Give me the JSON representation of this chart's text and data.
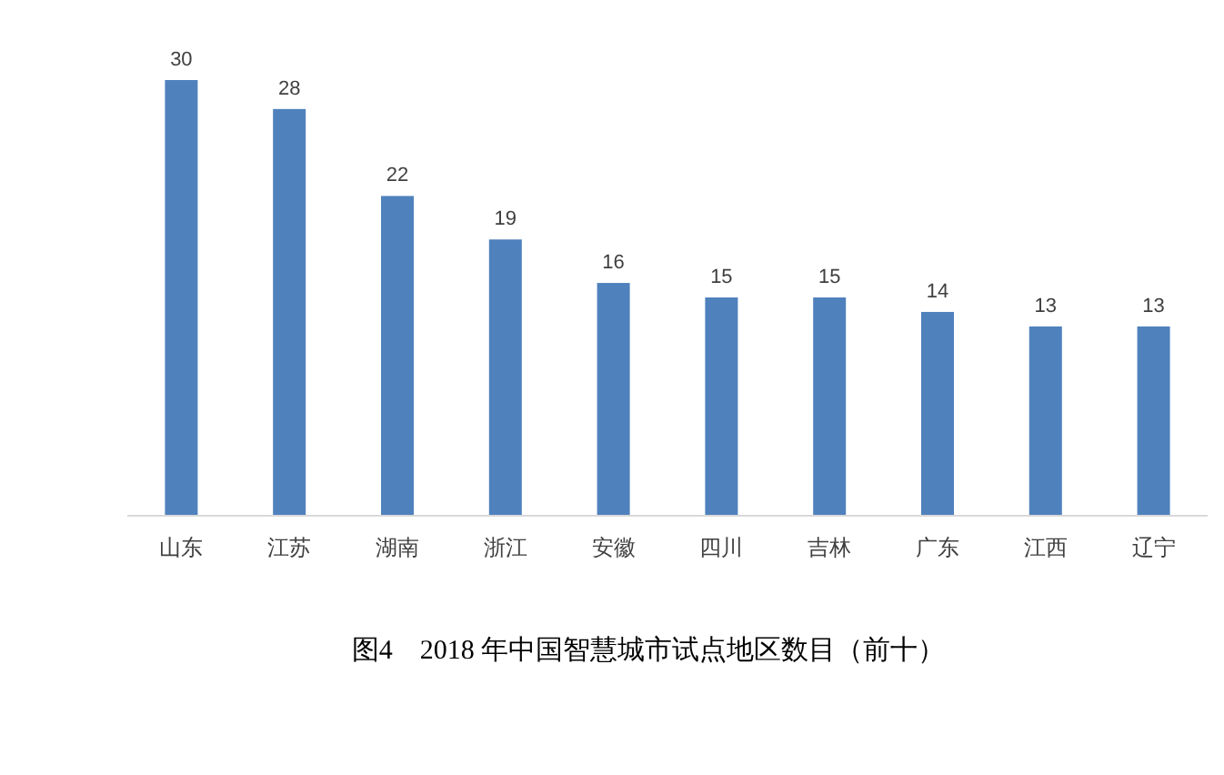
{
  "chart_data": {
    "type": "bar",
    "title": "图4　2018 年中国智慧城市试点地区数目（前十）",
    "categories": [
      "山东",
      "江苏",
      "湖南",
      "浙江",
      "安徽",
      "四川",
      "吉林",
      "广东",
      "江西",
      "辽宁"
    ],
    "values": [
      30,
      28,
      22,
      19,
      16,
      15,
      15,
      14,
      13,
      13
    ],
    "color": "#4f81bd",
    "data_labels": true
  }
}
